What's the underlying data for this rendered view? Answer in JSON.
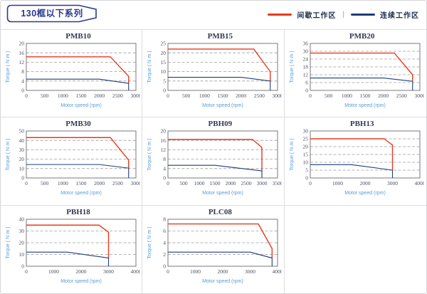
{
  "header": {
    "title": "130框以下系列",
    "legend": [
      {
        "label": "间歇工作区",
        "color": "#e8391d"
      },
      {
        "label": "连续工作区",
        "color": "#1f3c78"
      }
    ],
    "legend_separator": "|"
  },
  "colors": {
    "red": "#e8391d",
    "blue": "#1f3c78",
    "grid": "#9e9e9e",
    "frame": "#6b6b6b",
    "tick": "#4b4f63",
    "axis_label": "#5b9bd5",
    "chart_title": "#333a52",
    "header_navy": "#2b3990",
    "divider": "#dddddd"
  },
  "chart_data": [
    {
      "type": "line",
      "title": "PMB10",
      "xlabel": "Motor speed (rpm)",
      "ylabel": "Torque ( N·m )",
      "xlim": [
        0,
        3000
      ],
      "xticks": [
        0,
        500,
        1000,
        1500,
        2000,
        2500,
        3000
      ],
      "ylim": [
        0,
        20
      ],
      "yticks": [
        0,
        4,
        8,
        12,
        16,
        20
      ],
      "grid": "dashed-horizontal",
      "legend_position": "none",
      "series": [
        {
          "name": "间歇工作区",
          "color": "red",
          "points": [
            [
              0,
              14.3
            ],
            [
              2300,
              14.3
            ],
            [
              2800,
              6
            ],
            [
              2800,
              3
            ]
          ]
        },
        {
          "name": "连续工作区",
          "color": "blue",
          "points": [
            [
              0,
              4.8
            ],
            [
              2000,
              4.8
            ],
            [
              2800,
              3
            ],
            [
              2800,
              0
            ]
          ]
        }
      ]
    },
    {
      "type": "line",
      "title": "PMB15",
      "xlabel": "Motor speed (rpm)",
      "ylabel": "Torque ( N·m )",
      "xlim": [
        0,
        3000
      ],
      "xticks": [
        0,
        500,
        1000,
        1500,
        2000,
        2500,
        3000
      ],
      "ylim": [
        0,
        25
      ],
      "yticks": [
        0,
        5,
        10,
        15,
        20,
        25
      ],
      "grid": "dashed-horizontal",
      "legend_position": "none",
      "series": [
        {
          "name": "间歇工作区",
          "color": "red",
          "points": [
            [
              0,
              22
            ],
            [
              2350,
              22
            ],
            [
              2800,
              10
            ],
            [
              2800,
              5
            ]
          ]
        },
        {
          "name": "连续工作区",
          "color": "blue",
          "points": [
            [
              0,
              7
            ],
            [
              2000,
              7
            ],
            [
              2800,
              5
            ],
            [
              2800,
              0
            ]
          ]
        }
      ]
    },
    {
      "type": "line",
      "title": "PMB20",
      "xlabel": "Motor speed (rpm)",
      "ylabel": "Torque ( N·m )",
      "xlim": [
        0,
        3000
      ],
      "xticks": [
        0,
        500,
        1000,
        1500,
        2000,
        2500,
        3000
      ],
      "ylim": [
        0,
        36
      ],
      "yticks": [
        0,
        6,
        12,
        18,
        24,
        30,
        36
      ],
      "grid": "dashed-horizontal",
      "legend_position": "none",
      "series": [
        {
          "name": "间歇工作区",
          "color": "red",
          "points": [
            [
              0,
              28.6
            ],
            [
              2300,
              28.6
            ],
            [
              2800,
              12
            ],
            [
              2800,
              7
            ]
          ]
        },
        {
          "name": "连续工作区",
          "color": "blue",
          "points": [
            [
              0,
              9.5
            ],
            [
              2000,
              9.5
            ],
            [
              2800,
              7
            ],
            [
              2800,
              0
            ]
          ]
        }
      ]
    },
    {
      "type": "line",
      "title": "PMB30",
      "xlabel": "Motor speed (rpm)",
      "ylabel": "Torque ( N·m )",
      "xlim": [
        0,
        3000
      ],
      "xticks": [
        0,
        500,
        1000,
        1500,
        2000,
        2500,
        3000
      ],
      "ylim": [
        0,
        50
      ],
      "yticks": [
        0,
        10,
        20,
        30,
        40,
        50
      ],
      "grid": "dashed-horizontal",
      "legend_position": "none",
      "series": [
        {
          "name": "间歇工作区",
          "color": "red",
          "points": [
            [
              0,
              43
            ],
            [
              2300,
              43
            ],
            [
              2800,
              19
            ],
            [
              2800,
              10.5
            ]
          ]
        },
        {
          "name": "连续工作区",
          "color": "blue",
          "points": [
            [
              0,
              14.3
            ],
            [
              2000,
              14.3
            ],
            [
              2800,
              10.5
            ],
            [
              2800,
              0
            ]
          ]
        }
      ]
    },
    {
      "type": "line",
      "title": "PBH09",
      "xlabel": "Motor speed (rpm)",
      "ylabel": "Torque ( N·m )",
      "xlim": [
        0,
        3500
      ],
      "xticks": [
        0,
        500,
        1000,
        1500,
        2000,
        2500,
        3000,
        3500
      ],
      "ylim": [
        0,
        20
      ],
      "yticks": [
        0,
        4,
        8,
        12,
        16,
        20
      ],
      "grid": "dashed-horizontal",
      "legend_position": "none",
      "series": [
        {
          "name": "间歇工作区",
          "color": "red",
          "points": [
            [
              0,
              16.4
            ],
            [
              2700,
              16.4
            ],
            [
              3000,
              13
            ],
            [
              3000,
              3
            ]
          ]
        },
        {
          "name": "连续工作区",
          "color": "blue",
          "points": [
            [
              0,
              5.4
            ],
            [
              1500,
              5.4
            ],
            [
              3000,
              3
            ],
            [
              3000,
              0
            ]
          ]
        }
      ]
    },
    {
      "type": "line",
      "title": "PBH13",
      "xlabel": "Motor speed (rpm)",
      "ylabel": "Torque ( N·m )",
      "xlim": [
        0,
        4000
      ],
      "xticks": [
        0,
        1000,
        2000,
        3000,
        4000
      ],
      "ylim": [
        0,
        30
      ],
      "yticks": [
        0,
        5,
        10,
        15,
        20,
        25,
        30
      ],
      "grid": "dashed-horizontal",
      "legend_position": "none",
      "series": [
        {
          "name": "间歇工作区",
          "color": "red",
          "points": [
            [
              0,
              25
            ],
            [
              2700,
              25
            ],
            [
              3000,
              21
            ],
            [
              3000,
              5
            ]
          ]
        },
        {
          "name": "连续工作区",
          "color": "blue",
          "points": [
            [
              0,
              8.5
            ],
            [
              1500,
              8.5
            ],
            [
              3000,
              5
            ],
            [
              3000,
              0
            ]
          ]
        }
      ]
    },
    {
      "type": "line",
      "title": "PBH18",
      "xlabel": "Motor speed (rpm)",
      "ylabel": "Torque ( N·m )",
      "xlim": [
        0,
        4000
      ],
      "xticks": [
        0,
        1000,
        2000,
        3000,
        4000
      ],
      "ylim": [
        0,
        40
      ],
      "yticks": [
        0,
        10,
        20,
        30,
        40
      ],
      "grid": "dashed-horizontal",
      "legend_position": "none",
      "series": [
        {
          "name": "间歇工作区",
          "color": "red",
          "points": [
            [
              0,
              35
            ],
            [
              2650,
              35
            ],
            [
              3000,
              29
            ],
            [
              3000,
              7
            ]
          ]
        },
        {
          "name": "连续工作区",
          "color": "blue",
          "points": [
            [
              0,
              12
            ],
            [
              1500,
              12
            ],
            [
              3000,
              7
            ],
            [
              3000,
              0
            ]
          ]
        }
      ]
    },
    {
      "type": "line",
      "title": "PLC08",
      "xlabel": "Motor speed (rpm)",
      "ylabel": "Torque ( N·m )",
      "xlim": [
        0,
        4000
      ],
      "xticks": [
        0,
        1000,
        2000,
        3000,
        4000
      ],
      "ylim": [
        0,
        8
      ],
      "yticks": [
        0,
        2,
        4,
        6,
        8
      ],
      "grid": "dashed-horizontal",
      "legend_position": "none",
      "series": [
        {
          "name": "间歇工作区",
          "color": "red",
          "points": [
            [
              0,
              7.2
            ],
            [
              3300,
              7.2
            ],
            [
              3800,
              3
            ],
            [
              3800,
              1.4
            ]
          ]
        },
        {
          "name": "连续工作区",
          "color": "blue",
          "points": [
            [
              0,
              2.4
            ],
            [
              3000,
              2.4
            ],
            [
              3800,
              1.4
            ],
            [
              3800,
              0
            ]
          ]
        }
      ]
    }
  ]
}
